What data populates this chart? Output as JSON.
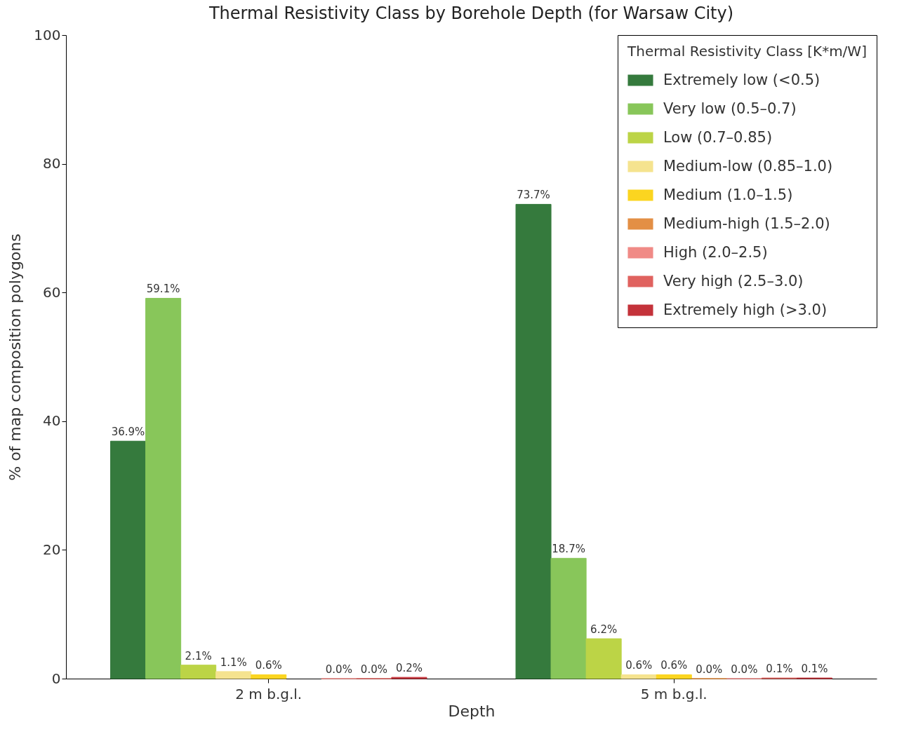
{
  "chart_data": {
    "type": "bar",
    "title": "Thermal Resistivity Class by Borehole Depth (for Warsaw City)",
    "xlabel": "Depth",
    "ylabel": "% of map composition polygons",
    "legend_title": "Thermal Resistivity Class [K*m/W]",
    "categories": [
      "2 m b.g.l.",
      "5 m b.g.l."
    ],
    "series": [
      {
        "name": "Extremely low (<0.5)",
        "color": "#357a3d",
        "values": [
          36.9,
          73.7
        ],
        "value_labels": [
          "36.9%",
          "73.7%"
        ]
      },
      {
        "name": "Very low (0.5–0.7)",
        "color": "#88c65a",
        "values": [
          59.1,
          18.7
        ],
        "value_labels": [
          "59.1%",
          "18.7%"
        ]
      },
      {
        "name": "Low (0.7–0.85)",
        "color": "#bcd446",
        "values": [
          2.1,
          6.2
        ],
        "value_labels": [
          "2.1%",
          "6.2%"
        ]
      },
      {
        "name": "Medium-low (0.85–1.0)",
        "color": "#f5e38f",
        "values": [
          1.1,
          0.6
        ],
        "value_labels": [
          "1.1%",
          "0.6%"
        ]
      },
      {
        "name": "Medium (1.0–1.5)",
        "color": "#fbd520",
        "values": [
          0.6,
          0.6
        ],
        "value_labels": [
          "0.6%",
          "0.6%"
        ]
      },
      {
        "name": "Medium-high (1.5–2.0)",
        "color": "#e38f45",
        "values": [
          null,
          0.0
        ],
        "value_labels": [
          null,
          "0.0%"
        ]
      },
      {
        "name": "High (2.0–2.5)",
        "color": "#f08a86",
        "values": [
          0.0,
          0.0
        ],
        "value_labels": [
          "0.0%",
          "0.0%"
        ]
      },
      {
        "name": "Very high (2.5–3.0)",
        "color": "#e0625f",
        "values": [
          0.0,
          0.1
        ],
        "value_labels": [
          "0.0%",
          "0.1%"
        ]
      },
      {
        "name": "Extremely high (>3.0)",
        "color": "#c4323a",
        "values": [
          0.2,
          0.1
        ],
        "value_labels": [
          "0.2%",
          "0.1%"
        ]
      }
    ],
    "ylim": [
      0,
      100
    ],
    "yticks": [
      0,
      20,
      40,
      60,
      80,
      100
    ],
    "legend": "top right"
  }
}
